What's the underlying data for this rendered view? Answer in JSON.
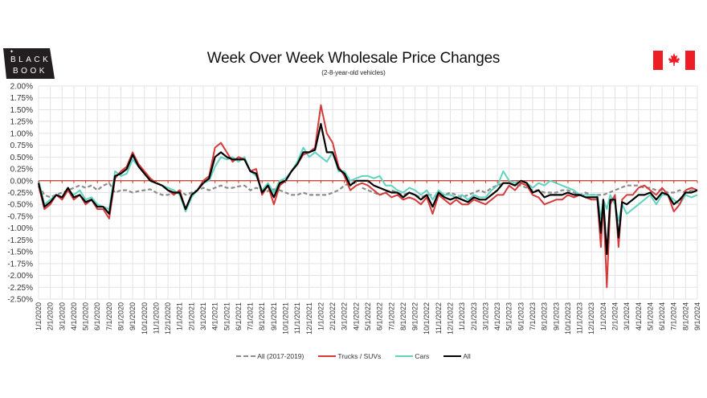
{
  "brand": {
    "line1": "BLACK",
    "line2": "BOOK"
  },
  "header": {
    "title": "Week Over Week Wholesale Price Changes",
    "subtitle": "(2-8-year-old vehicles)"
  },
  "colors": {
    "all_2017_2019": "#8c8c8c",
    "trucks": "#d63a3a",
    "cars": "#5fd4c0",
    "all": "#000000",
    "zero_line": "#c0392b",
    "grid": "#e3e3e3",
    "flag_red": "#ee1c25"
  },
  "chart_data": {
    "type": "line",
    "title": "Week Over Week Wholesale Price Changes",
    "subtitle": "(2-8-year-old vehicles)",
    "xlabel": "",
    "ylabel": "",
    "ylim": [
      -2.5,
      2.0
    ],
    "y_unit": "%",
    "y_ticks": [
      "2.00%",
      "1.75%",
      "1.50%",
      "1.25%",
      "1.00%",
      "0.75%",
      "0.50%",
      "0.25%",
      "0.00%",
      "-0.25%",
      "-0.50%",
      "-0.75%",
      "-1.00%",
      "-1.25%",
      "-1.50%",
      "-1.75%",
      "-2.00%",
      "-2.25%",
      "-2.50%"
    ],
    "x_ticks": [
      "1/1/2020",
      "2/1/2020",
      "3/1/2020",
      "4/1/2020",
      "5/1/2020",
      "6/1/2020",
      "7/1/2020",
      "8/1/2020",
      "9/1/2020",
      "10/1/2020",
      "11/1/2020",
      "12/1/2020",
      "1/1/2021",
      "2/1/2021",
      "3/1/2021",
      "4/1/2021",
      "5/1/2021",
      "6/1/2021",
      "7/1/2021",
      "8/1/2021",
      "9/1/2021",
      "10/1/2021",
      "11/1/2021",
      "12/1/2021",
      "1/1/2022",
      "2/1/2022",
      "3/1/2022",
      "4/1/2022",
      "5/1/2022",
      "6/1/2022",
      "7/1/2022",
      "8/1/2022",
      "9/1/2022",
      "10/1/2022",
      "11/1/2022",
      "12/1/2022",
      "1/1/2023",
      "2/1/2023",
      "3/1/2023",
      "4/1/2023",
      "5/1/2023",
      "6/1/2023",
      "7/1/2023",
      "8/1/2023",
      "9/1/2023",
      "10/1/2023",
      "11/1/2023",
      "12/1/2023",
      "1/1/2024",
      "2/1/2024",
      "3/1/2024",
      "4/1/2024",
      "5/1/2024",
      "6/1/2024",
      "7/1/2024",
      "8/1/2024",
      "9/1/2024"
    ],
    "x_unit": "months since 1/1/2020",
    "grid": true,
    "legend_position": "bottom",
    "series": [
      {
        "name": "All (2017-2019)",
        "style": "dashed",
        "x": [
          0,
          0.5,
          1,
          1.5,
          2,
          2.5,
          3,
          3.5,
          4,
          4.5,
          5,
          5.5,
          6,
          6.5,
          7,
          7.5,
          8,
          8.5,
          9,
          9.5,
          10,
          10.5,
          11,
          11.5,
          12,
          12.5,
          13,
          13.5,
          14,
          14.5,
          15,
          15.5,
          16,
          16.5,
          17,
          17.5,
          18,
          18.5,
          19,
          19.5,
          20,
          20.5,
          21,
          21.5,
          22,
          22.5,
          23,
          23.5,
          24,
          24.5,
          25,
          25.5,
          26,
          26.5,
          27
        ],
        "values": [
          -0.1,
          -0.3,
          -0.35,
          -0.3,
          -0.25,
          -0.2,
          -0.15,
          -0.1,
          -0.15,
          -0.1,
          -0.2,
          -0.1,
          -0.05,
          -0.25,
          -0.2,
          -0.2,
          -0.25,
          -0.22,
          -0.2,
          -0.18,
          -0.25,
          -0.3,
          -0.3,
          -0.25,
          -0.2,
          -0.3,
          -0.25,
          -0.2,
          -0.15,
          -0.2,
          -0.15,
          -0.1,
          -0.15,
          -0.15,
          -0.12,
          -0.1,
          -0.2,
          -0.15,
          -0.2,
          -0.22,
          -0.18,
          -0.2,
          -0.25,
          -0.3,
          -0.3,
          -0.25,
          -0.3,
          -0.3,
          -0.3,
          -0.3,
          -0.25,
          -0.2,
          -0.1,
          -0.05,
          -0.05
        ]
      },
      {
        "name": "All (2017-2019)",
        "style": "dashed",
        "x": [
          27.5,
          28,
          28.5,
          29,
          29.5,
          30,
          30.5,
          31,
          31.5,
          32,
          32.5,
          33,
          33.5,
          34,
          34.5,
          35,
          35.5,
          36,
          36.5,
          37,
          37.5,
          38,
          38.5,
          39,
          39.5,
          40,
          40.5,
          41,
          41.5,
          42,
          42.5,
          43,
          43.5,
          44,
          44.5,
          45,
          45.5,
          46,
          46.5,
          47,
          47.5,
          48,
          48.5,
          49,
          49.5,
          50,
          50.5,
          51,
          51.5,
          52,
          52.5,
          53,
          53.5,
          54,
          54.5,
          55,
          55.5,
          56
        ],
        "values": [
          -0.15,
          -0.2,
          -0.25,
          -0.3,
          -0.25,
          -0.2,
          -0.25,
          -0.3,
          -0.25,
          -0.3,
          -0.35,
          -0.3,
          -0.3,
          -0.35,
          -0.3,
          -0.25,
          -0.3,
          -0.35,
          -0.3,
          -0.25,
          -0.2,
          -0.25,
          -0.15,
          -0.1,
          -0.05,
          -0.05,
          -0.1,
          -0.1,
          -0.15,
          -0.2,
          -0.2,
          -0.25,
          -0.25,
          -0.25,
          -0.2,
          -0.2,
          -0.25,
          -0.3,
          -0.25,
          -0.3,
          -0.3,
          -0.3,
          -0.25,
          -0.2,
          -0.15,
          -0.1,
          -0.1,
          -0.1,
          -0.15,
          -0.15,
          -0.2,
          -0.2,
          -0.25,
          -0.25,
          -0.2,
          -0.25,
          -0.2,
          -0.2
        ]
      },
      {
        "name": "Trucks / SUVs",
        "style": "solid",
        "x": [
          0,
          0.5,
          1,
          1.5,
          2,
          2.5,
          3,
          3.5,
          4,
          4.5,
          5,
          5.5,
          6,
          6.5,
          7,
          7.5,
          8,
          8.5,
          9,
          9.5,
          10,
          10.5,
          11,
          11.5,
          12,
          12.5,
          13,
          13.5,
          14,
          14.5,
          15,
          15.5,
          16,
          16.5,
          17,
          17.5,
          18,
          18.5,
          19,
          19.5,
          20,
          20.5,
          21,
          21.5,
          22,
          22.5,
          23,
          23.5,
          24,
          24.5,
          25,
          25.5,
          26,
          26.5,
          27,
          27.5,
          28,
          28.5,
          29,
          29.5,
          30,
          30.5,
          31,
          31.5,
          32,
          32.5,
          33,
          33.5,
          34,
          34.5,
          35,
          35.5,
          36,
          36.5,
          37,
          37.5,
          38,
          38.5,
          39,
          39.5,
          40,
          40.5,
          41,
          41.5,
          42,
          42.5,
          43,
          43.5,
          44,
          44.5,
          45,
          45.5,
          46,
          46.5,
          47,
          47.5,
          47.8,
          48,
          48.3,
          48.6,
          49,
          49.3,
          49.6,
          50,
          50.5,
          51,
          51.5,
          52,
          52.5,
          53,
          53.5,
          54,
          54.5,
          55,
          55.5,
          56
        ],
        "values": [
          -0.1,
          -0.6,
          -0.5,
          -0.3,
          -0.4,
          -0.2,
          -0.4,
          -0.3,
          -0.5,
          -0.4,
          -0.6,
          -0.6,
          -0.8,
          0.05,
          0.2,
          0.3,
          0.6,
          0.35,
          0.2,
          0.05,
          -0.05,
          -0.1,
          -0.2,
          -0.3,
          -0.2,
          -0.6,
          -0.3,
          -0.2,
          0.0,
          0.1,
          0.7,
          0.8,
          0.6,
          0.4,
          0.5,
          0.45,
          0.2,
          0.25,
          -0.3,
          -0.1,
          -0.5,
          -0.1,
          0.0,
          0.2,
          0.35,
          0.55,
          0.6,
          0.7,
          1.6,
          1.0,
          0.8,
          0.3,
          0.1,
          -0.2,
          -0.1,
          -0.05,
          -0.1,
          -0.2,
          -0.3,
          -0.25,
          -0.35,
          -0.3,
          -0.4,
          -0.35,
          -0.4,
          -0.5,
          -0.35,
          -0.7,
          -0.3,
          -0.4,
          -0.5,
          -0.4,
          -0.5,
          -0.5,
          -0.4,
          -0.45,
          -0.5,
          -0.4,
          -0.3,
          -0.3,
          -0.1,
          -0.2,
          -0.05,
          -0.1,
          -0.3,
          -0.35,
          -0.5,
          -0.45,
          -0.4,
          -0.4,
          -0.3,
          -0.35,
          -0.3,
          -0.35,
          -0.4,
          -0.4,
          -1.4,
          -0.4,
          -2.25,
          -0.5,
          -0.3,
          -1.4,
          -0.4,
          -0.3,
          -0.3,
          -0.15,
          -0.1,
          -0.2,
          -0.3,
          -0.15,
          -0.3,
          -0.65,
          -0.5,
          -0.2,
          -0.15,
          -0.2
        ]
      },
      {
        "name": "Cars",
        "style": "solid",
        "x": [
          0,
          0.5,
          1,
          1.5,
          2,
          2.5,
          3,
          3.5,
          4,
          4.5,
          5,
          5.5,
          6,
          6.5,
          7,
          7.5,
          8,
          8.5,
          9,
          9.5,
          10,
          10.5,
          11,
          11.5,
          12,
          12.5,
          13,
          13.5,
          14,
          14.5,
          15,
          15.5,
          16,
          16.5,
          17,
          17.5,
          18,
          18.5,
          19,
          19.5,
          20,
          20.5,
          21,
          21.5,
          22,
          22.5,
          23,
          23.5,
          24,
          24.5,
          25,
          25.5,
          26,
          26.5,
          27,
          27.5,
          28,
          28.5,
          29,
          29.5,
          30,
          30.5,
          31,
          31.5,
          32,
          32.5,
          33,
          33.5,
          34,
          34.5,
          35,
          35.5,
          36,
          36.5,
          37,
          37.5,
          38,
          38.5,
          39,
          39.5,
          40,
          40.5,
          41,
          41.5,
          42,
          42.5,
          43,
          43.5,
          44,
          44.5,
          45,
          45.5,
          46,
          46.5,
          47,
          47.5,
          47.8,
          48,
          48.3,
          48.6,
          49,
          49.3,
          49.6,
          50,
          50.5,
          51,
          51.5,
          52,
          52.5,
          53,
          53.5,
          54,
          54.5,
          55,
          55.5,
          56
        ],
        "values": [
          0.0,
          -0.5,
          -0.4,
          -0.3,
          -0.35,
          -0.2,
          -0.3,
          -0.2,
          -0.4,
          -0.35,
          -0.5,
          -0.55,
          -0.6,
          0.2,
          0.1,
          0.15,
          0.45,
          0.3,
          0.15,
          0.05,
          -0.05,
          -0.1,
          -0.15,
          -0.2,
          -0.3,
          -0.65,
          -0.35,
          -0.2,
          -0.05,
          0.0,
          0.3,
          0.5,
          0.45,
          0.5,
          0.4,
          0.5,
          0.2,
          0.1,
          -0.2,
          -0.05,
          -0.25,
          0.0,
          0.05,
          0.2,
          0.4,
          0.7,
          0.5,
          0.6,
          0.5,
          0.4,
          0.6,
          0.2,
          0.2,
          0.0,
          0.05,
          0.1,
          0.1,
          0.05,
          0.1,
          -0.1,
          -0.1,
          -0.2,
          -0.25,
          -0.15,
          -0.2,
          -0.3,
          -0.2,
          -0.4,
          -0.2,
          -0.3,
          -0.3,
          -0.35,
          -0.3,
          -0.4,
          -0.3,
          -0.35,
          -0.35,
          -0.2,
          -0.1,
          0.2,
          0.0,
          -0.05,
          0.0,
          -0.05,
          -0.15,
          -0.05,
          -0.1,
          0.0,
          -0.05,
          -0.1,
          -0.15,
          -0.2,
          -0.3,
          -0.3,
          -0.3,
          -0.3,
          -0.8,
          -0.4,
          -0.6,
          -0.3,
          -0.5,
          -0.85,
          -0.5,
          -0.7,
          -0.6,
          -0.5,
          -0.4,
          -0.3,
          -0.5,
          -0.3,
          -0.3,
          -0.4,
          -0.5,
          -0.3,
          -0.35,
          -0.3
        ]
      },
      {
        "name": "All",
        "style": "solid",
        "x": [
          0,
          0.5,
          1,
          1.5,
          2,
          2.5,
          3,
          3.5,
          4,
          4.5,
          5,
          5.5,
          6,
          6.5,
          7,
          7.5,
          8,
          8.5,
          9,
          9.5,
          10,
          10.5,
          11,
          11.5,
          12,
          12.5,
          13,
          13.5,
          14,
          14.5,
          15,
          15.5,
          16,
          16.5,
          17,
          17.5,
          18,
          18.5,
          19,
          19.5,
          20,
          20.5,
          21,
          21.5,
          22,
          22.5,
          23,
          23.5,
          24,
          24.5,
          25,
          25.5,
          26,
          26.5,
          27,
          27.5,
          28,
          28.5,
          29,
          29.5,
          30,
          30.5,
          31,
          31.5,
          32,
          32.5,
          33,
          33.5,
          34,
          34.5,
          35,
          35.5,
          36,
          36.5,
          37,
          37.5,
          38,
          38.5,
          39,
          39.5,
          40,
          40.5,
          41,
          41.5,
          42,
          42.5,
          43,
          43.5,
          44,
          44.5,
          45,
          45.5,
          46,
          46.5,
          47,
          47.5,
          47.8,
          48,
          48.3,
          48.6,
          49,
          49.3,
          49.6,
          50,
          50.5,
          51,
          51.5,
          52,
          52.5,
          53,
          53.5,
          54,
          54.5,
          55,
          55.5,
          56
        ],
        "values": [
          -0.05,
          -0.55,
          -0.45,
          -0.3,
          -0.35,
          -0.15,
          -0.35,
          -0.3,
          -0.45,
          -0.4,
          -0.55,
          -0.55,
          -0.7,
          0.1,
          0.15,
          0.25,
          0.55,
          0.3,
          0.15,
          0.0,
          -0.05,
          -0.1,
          -0.2,
          -0.25,
          -0.25,
          -0.6,
          -0.3,
          -0.2,
          -0.05,
          0.05,
          0.5,
          0.6,
          0.5,
          0.45,
          0.45,
          0.45,
          0.2,
          0.15,
          -0.25,
          -0.1,
          -0.35,
          -0.05,
          0.0,
          0.2,
          0.35,
          0.6,
          0.6,
          0.65,
          1.2,
          0.6,
          0.6,
          0.25,
          0.15,
          -0.1,
          0.0,
          0.0,
          0.0,
          -0.1,
          -0.15,
          -0.2,
          -0.25,
          -0.25,
          -0.35,
          -0.25,
          -0.3,
          -0.4,
          -0.3,
          -0.55,
          -0.25,
          -0.35,
          -0.4,
          -0.35,
          -0.4,
          -0.45,
          -0.35,
          -0.4,
          -0.4,
          -0.3,
          -0.2,
          -0.05,
          -0.05,
          -0.1,
          0.0,
          -0.05,
          -0.25,
          -0.2,
          -0.35,
          -0.3,
          -0.3,
          -0.3,
          -0.25,
          -0.3,
          -0.3,
          -0.35,
          -0.35,
          -0.35,
          -1.1,
          -0.4,
          -1.55,
          -0.4,
          -0.4,
          -1.2,
          -0.45,
          -0.5,
          -0.4,
          -0.3,
          -0.3,
          -0.25,
          -0.4,
          -0.25,
          -0.3,
          -0.5,
          -0.4,
          -0.25,
          -0.25,
          -0.2
        ]
      }
    ]
  },
  "legend": [
    {
      "label": "All (2017-2019)",
      "color": "#8c8c8c",
      "dashed": true
    },
    {
      "label": "Trucks / SUVs",
      "color": "#d63a3a",
      "dashed": false
    },
    {
      "label": "Cars",
      "color": "#5fd4c0",
      "dashed": false
    },
    {
      "label": "All",
      "color": "#000000",
      "dashed": false
    }
  ]
}
